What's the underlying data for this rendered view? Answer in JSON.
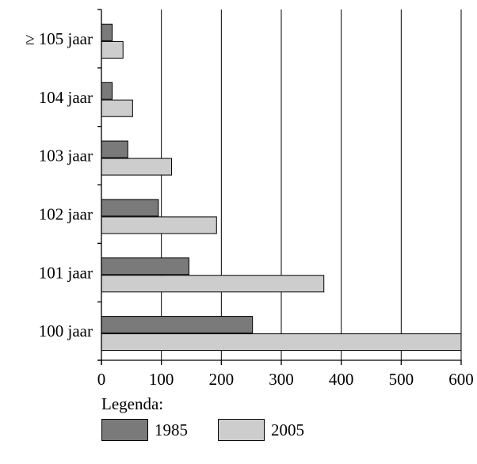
{
  "chart_data": {
    "type": "bar",
    "orientation": "horizontal",
    "categories": [
      "≥ 105 jaar",
      "104 jaar",
      "103 jaar",
      "102 jaar",
      "101 jaar",
      "100 jaar"
    ],
    "series": [
      {
        "name": "1985",
        "values": [
          18,
          18,
          44,
          95,
          146,
          252
        ]
      },
      {
        "name": "2005",
        "values": [
          36,
          52,
          117,
          192,
          371,
          600
        ]
      }
    ],
    "xlim": [
      0,
      600
    ],
    "xticks": [
      "0",
      "100",
      "200",
      "300",
      "400",
      "500",
      "600"
    ],
    "grid": "vertical",
    "legend_title": "Legenda:",
    "colors": {
      "1985": "#7a7a7a",
      "2005": "#cdcdcd",
      "grid": "#000000"
    }
  }
}
